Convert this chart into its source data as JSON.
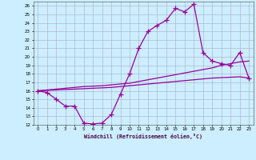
{
  "xlabel": "Windchill (Refroidissement éolien,°C)",
  "bg_color": "#cceeff",
  "line_color": "#990099",
  "grid_color": "#aaaacc",
  "hours": [
    0,
    1,
    2,
    3,
    4,
    5,
    6,
    7,
    8,
    9,
    10,
    11,
    12,
    13,
    14,
    15,
    16,
    17,
    18,
    19,
    20,
    21,
    22,
    23
  ],
  "windchill": [
    16.0,
    15.8,
    15.0,
    14.2,
    14.2,
    12.2,
    12.1,
    12.2,
    13.2,
    15.6,
    18.0,
    21.0,
    23.0,
    23.7,
    24.3,
    25.7,
    25.3,
    26.2,
    20.5,
    19.5,
    19.2,
    19.0,
    20.5,
    17.5
  ],
  "line_upper": [
    16.0,
    16.1,
    16.2,
    16.3,
    16.4,
    16.5,
    16.55,
    16.6,
    16.7,
    16.8,
    16.9,
    17.1,
    17.3,
    17.5,
    17.7,
    17.9,
    18.1,
    18.3,
    18.5,
    18.7,
    19.0,
    19.2,
    19.4,
    19.5
  ],
  "line_lower": [
    16.0,
    16.05,
    16.1,
    16.15,
    16.2,
    16.25,
    16.3,
    16.35,
    16.4,
    16.5,
    16.6,
    16.7,
    16.8,
    16.9,
    17.0,
    17.1,
    17.2,
    17.3,
    17.4,
    17.5,
    17.55,
    17.6,
    17.65,
    17.5
  ],
  "ylim": [
    12,
    26.5
  ],
  "yticks": [
    12,
    13,
    14,
    15,
    16,
    17,
    18,
    19,
    20,
    21,
    22,
    23,
    24,
    25,
    26
  ],
  "xlim": [
    -0.5,
    23.5
  ],
  "xticks": [
    0,
    1,
    2,
    3,
    4,
    5,
    6,
    7,
    8,
    9,
    10,
    11,
    12,
    13,
    14,
    15,
    16,
    17,
    18,
    19,
    20,
    21,
    22,
    23
  ]
}
